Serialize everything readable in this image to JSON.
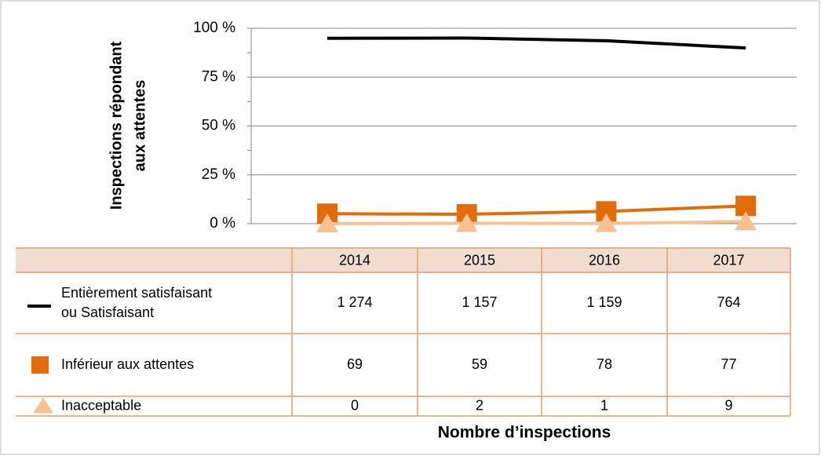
{
  "chart_data": {
    "type": "line",
    "ylabel_lines": [
      "Inspections répondant",
      "aux attentes"
    ],
    "xlabel": "Nombre d’inspections",
    "categories": [
      "2014",
      "2015",
      "2016",
      "2017"
    ],
    "ylim": [
      0,
      100
    ],
    "yticks": [
      {
        "value": 0,
        "label": "0 %"
      },
      {
        "value": 25,
        "label": "25 %"
      },
      {
        "value": 50,
        "label": "50 %"
      },
      {
        "value": 75,
        "label": "75 %"
      },
      {
        "value": 100,
        "label": "100 %"
      }
    ],
    "grid": true,
    "series": [
      {
        "name": "Entièrement satisfaisant ou Satisfaisant",
        "color": "#000000",
        "marker": "none",
        "values": [
          94.9,
          95.0,
          93.6,
          89.9
        ],
        "table_values": [
          "1 274",
          "1 157",
          "1 159",
          "764"
        ]
      },
      {
        "name": "Inférieur aux attentes",
        "color": "#e36c0a",
        "marker": "square",
        "values": [
          5.1,
          4.8,
          6.3,
          9.1
        ],
        "table_values": [
          "69",
          "59",
          "78",
          "77"
        ]
      },
      {
        "name": "Inacceptable",
        "color": "#fac090",
        "marker": "triangle",
        "values": [
          0,
          0.2,
          0.1,
          1.1
        ],
        "table_values": [
          "0",
          "2",
          "1",
          "9"
        ]
      }
    ]
  }
}
